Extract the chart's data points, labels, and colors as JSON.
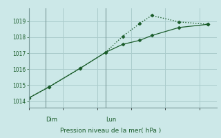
{
  "background_color": "#cce8e8",
  "grid_color": "#aacccc",
  "line_color": "#1a5c2a",
  "title": "Pression niveau de la mer( hPa )",
  "xlabel_dim": "Dim",
  "xlabel_lun": "Lun",
  "ylim": [
    1013.6,
    1019.8
  ],
  "xlim": [
    0,
    11
  ],
  "dim_x": 1.0,
  "lun_x": 4.5,
  "line1_x": [
    0.0,
    1.2,
    3.0,
    4.5,
    5.5,
    6.5,
    7.2,
    8.8,
    10.5
  ],
  "line1_y": [
    1014.2,
    1014.9,
    1016.05,
    1017.05,
    1018.05,
    1018.85,
    1019.35,
    1018.95,
    1018.8
  ],
  "line2_x": [
    0.0,
    1.2,
    3.0,
    4.5,
    5.5,
    6.5,
    7.2,
    8.8,
    10.5
  ],
  "line2_y": [
    1014.2,
    1014.9,
    1016.05,
    1017.05,
    1017.55,
    1017.8,
    1018.1,
    1018.6,
    1018.8
  ],
  "yticks": [
    1014,
    1015,
    1016,
    1017,
    1018,
    1019
  ],
  "figwidth": 3.2,
  "figheight": 2.0,
  "dpi": 100
}
